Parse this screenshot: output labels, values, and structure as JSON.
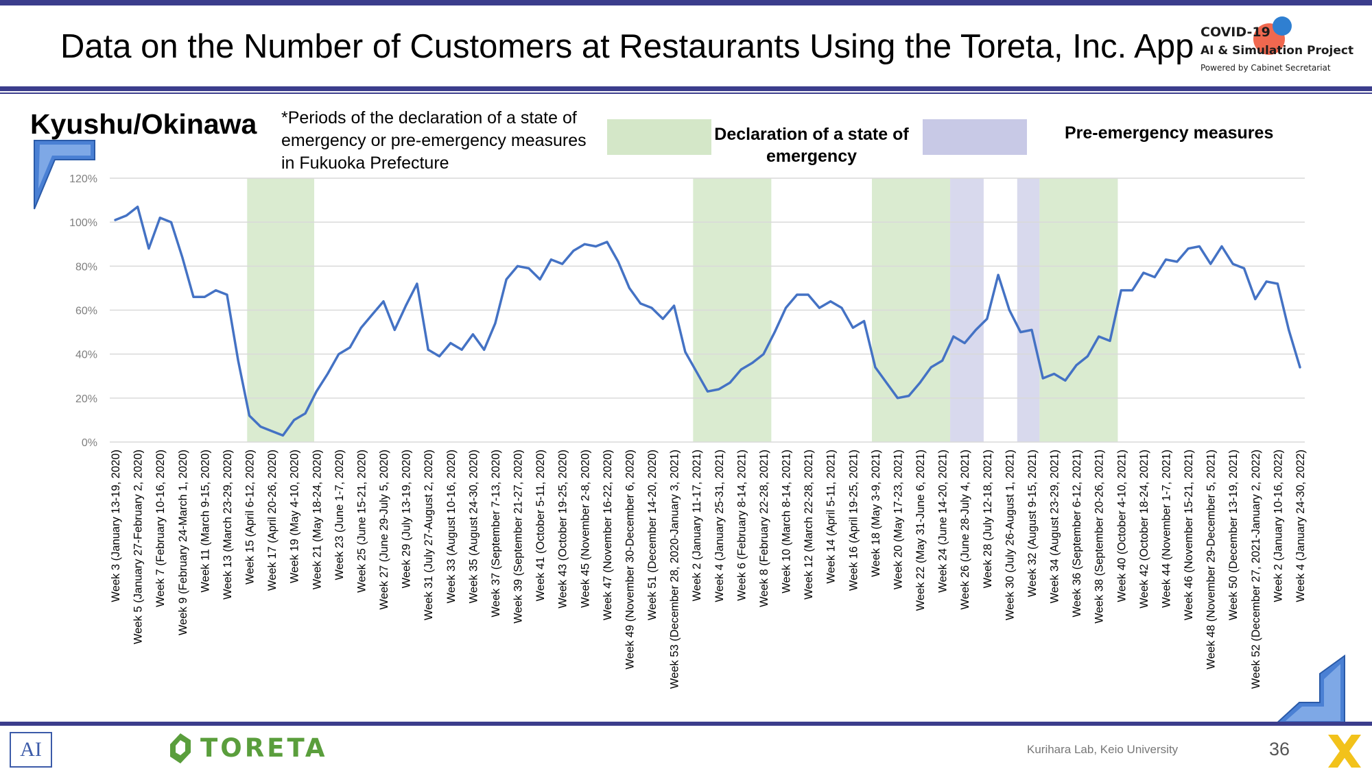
{
  "header": {
    "title": "Data on the Number of Customers at Restaurants Using the Toreta, Inc. App",
    "logo_line1": "COVID-19",
    "logo_line2": "AI & Simulation Project",
    "logo_line3": "Powered by Cabinet Secretariat"
  },
  "slide": {
    "region": "Kyushu/Okinawa",
    "period_note": "*Periods of the declaration of a state of emergency or pre-emergency measures in Fukuoka Prefecture",
    "legend_emergency": "Declaration of a state of emergency",
    "legend_pre_emergency": "Pre-emergency measures"
  },
  "footer": {
    "lab_logo": "AI",
    "toreta_logo": "TORETA",
    "credit": "Kurihara Lab, Keio University",
    "page_number": "36"
  },
  "colors": {
    "line": "#4472c4",
    "emergency": "#d4e7c8",
    "pre_emergency": "#c8c9e6",
    "brand_bar": "#3b3d8c",
    "toreta_green": "#5a9e3c"
  },
  "chart_data": {
    "type": "line",
    "title": "",
    "xlabel": "",
    "ylabel": "",
    "ylim": [
      0,
      120
    ],
    "yticks": [
      "0%",
      "20%",
      "40%",
      "60%",
      "80%",
      "100%",
      "120%"
    ],
    "grid": "horizontal",
    "tick_labels": [
      "Week 3 (January 13-19, 2020)",
      "Week 5 (January 27-February 2, 2020)",
      "Week 7 (February 10-16, 2020)",
      "Week 9 (February 24-March 1, 2020)",
      "Week 11 (March 9-15, 2020)",
      "Week 13 (March 23-29, 2020)",
      "Week 15 (April 6-12, 2020)",
      "Week 17 (April 20-26, 2020)",
      "Week 19 (May 4-10, 2020)",
      "Week 21 (May 18-24, 2020)",
      "Week 23 (June 1-7, 2020)",
      "Week 25 (June 15-21, 2020)",
      "Week 27 (June 29-July 5, 2020)",
      "Week 29 (July 13-19, 2020)",
      "Week 31 (July 27-August 2, 2020)",
      "Week 33 (August 10-16, 2020)",
      "Week 35 (August 24-30, 2020)",
      "Week 37 (September 7-13, 2020)",
      "Week 39 (September 21-27, 2020)",
      "Week 41 (October 5-11, 2020)",
      "Week 43 (October 19-25, 2020)",
      "Week 45 (November 2-8, 2020)",
      "Week 47 (November 16-22, 2020)",
      "Week 49 (November 30-December 6, 2020)",
      "Week 51 (December 14-20, 2020)",
      "Week 53 (December 28, 2020-January 3, 2021)",
      "Week 2 (January 11-17, 2021)",
      "Week 4 (January 25-31, 2021)",
      "Week 6 (February 8-14, 2021)",
      "Week 8 (February 22-28, 2021)",
      "Week 10 (March 8-14, 2021)",
      "Week 12 (March 22-28, 2021)",
      "Week 14 (April 5-11, 2021)",
      "Week 16 (April 19-25, 2021)",
      "Week 18 (May 3-9, 2021)",
      "Week 20 (May 17-23, 2021)",
      "Week 22 (May 31-June 6, 2021)",
      "Week 24 (June 14-20, 2021)",
      "Week 26 (June 28-July 4, 2021)",
      "Week 28 (July 12-18, 2021)",
      "Week 30 (July 26-August 1, 2021)",
      "Week 32 (August 9-15, 2021)",
      "Week 34 (August 23-29, 2021)",
      "Week 36 (September 6-12, 2021)",
      "Week 38 (September 20-26, 2021)",
      "Week 40 (October 4-10, 2021)",
      "Week 42 (October 18-24, 2021)",
      "Week 44 (November 1-7, 2021)",
      "Week 46 (November 15-21, 2021)",
      "Week 48 (November 29-December 5, 2021)",
      "Week 50 (December 13-19, 2021)",
      "Week 52 (December 27, 2021-January 2, 2022)",
      "Week 2 (January 10-16, 2022)",
      "Week 4 (January 24-30, 2022)"
    ],
    "series": [
      {
        "values": [
          101,
          103,
          107,
          88,
          102,
          100,
          84,
          66,
          66,
          69,
          67,
          37,
          12,
          7,
          5,
          3,
          10,
          13,
          23,
          31,
          40,
          43,
          52,
          58,
          64,
          51,
          62,
          72,
          42,
          39,
          45,
          42,
          49,
          42,
          54,
          74,
          80,
          79,
          74,
          83,
          81,
          87,
          90,
          89,
          91,
          82,
          70,
          63,
          61,
          56,
          62,
          41,
          32,
          23,
          24,
          27,
          33,
          36,
          40,
          50,
          61,
          67,
          67,
          61,
          64,
          61,
          52,
          55,
          34,
          27,
          20,
          21,
          27,
          34,
          37,
          48,
          45,
          51,
          56,
          76,
          60,
          50,
          51,
          29,
          31,
          28,
          35,
          39,
          48,
          46,
          69,
          69,
          77,
          75,
          83,
          82,
          88,
          89,
          81,
          89,
          81,
          79,
          65,
          73,
          72,
          51,
          34
        ]
      }
    ],
    "shaded_periods": [
      {
        "kind": "emergency",
        "start_index": 11.8,
        "end_index": 17.8
      },
      {
        "kind": "emergency",
        "start_index": 51.7,
        "end_index": 58.7
      },
      {
        "kind": "emergency",
        "start_index": 67.7,
        "end_index": 74.7
      },
      {
        "kind": "pre_emergency",
        "start_index": 74.7,
        "end_index": 77.7
      },
      {
        "kind": "pre_emergency",
        "start_index": 80.7,
        "end_index": 82.7
      },
      {
        "kind": "emergency",
        "start_index": 82.7,
        "end_index": 89.7
      }
    ]
  }
}
